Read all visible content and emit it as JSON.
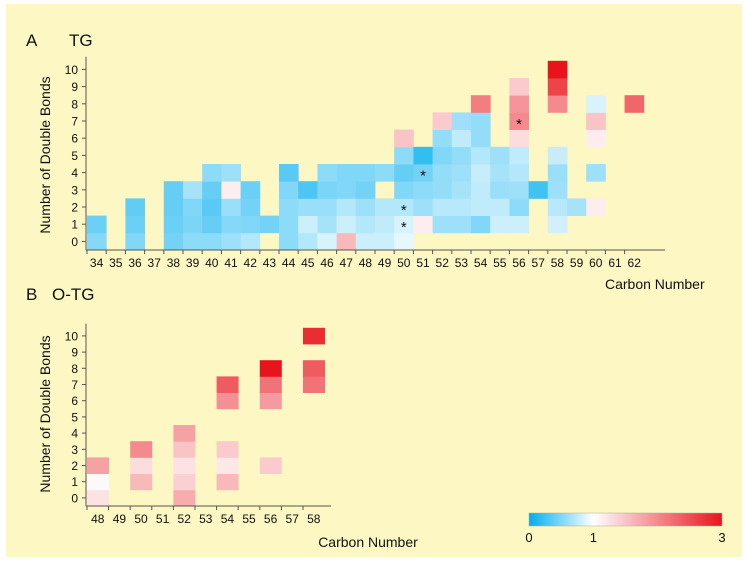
{
  "chart_data": [
    {
      "type": "heatmap",
      "panel_letter": "A",
      "title": "TG",
      "xlabel": "Carbon Number",
      "ylabel": "Number of Double Bonds",
      "x_ticks": [
        "34",
        "35",
        "36",
        "37",
        "38",
        "39",
        "40",
        "41",
        "42",
        "43",
        "44",
        "45",
        "46",
        "47",
        "48",
        "49",
        "50",
        "51",
        "52",
        "53",
        "54",
        "55",
        "56",
        "57",
        "58",
        "59",
        "60",
        "61",
        "62"
      ],
      "y_ticks": [
        "0",
        "1",
        "2",
        "3",
        "4",
        "5",
        "6",
        "7",
        "8",
        "9",
        "10"
      ],
      "color_scale": "fold-change, 0 = cyan (#00aeef), 1 = white, 3 = red (#e8141c)",
      "cells": [
        [
          34,
          0,
          0.52
        ],
        [
          34,
          1,
          0.42
        ],
        [
          36,
          0,
          0.5
        ],
        [
          36,
          1,
          0.42
        ],
        [
          36,
          2,
          0.38
        ],
        [
          38,
          0,
          0.45
        ],
        [
          38,
          1,
          0.42
        ],
        [
          38,
          2,
          0.4
        ],
        [
          38,
          3,
          0.4
        ],
        [
          39,
          0,
          0.55
        ],
        [
          39,
          1,
          0.48
        ],
        [
          39,
          2,
          0.5
        ],
        [
          39,
          3,
          0.65
        ],
        [
          40,
          0,
          0.55
        ],
        [
          40,
          1,
          0.4
        ],
        [
          40,
          2,
          0.35
        ],
        [
          40,
          3,
          0.4
        ],
        [
          40,
          4,
          0.55
        ],
        [
          41,
          0,
          0.62
        ],
        [
          41,
          1,
          0.52
        ],
        [
          41,
          2,
          0.6
        ],
        [
          41,
          3,
          1.15
        ],
        [
          41,
          4,
          0.62
        ],
        [
          42,
          0,
          0.7
        ],
        [
          42,
          1,
          0.5
        ],
        [
          42,
          2,
          0.45
        ],
        [
          42,
          3,
          0.42
        ],
        [
          43,
          1,
          0.45
        ],
        [
          44,
          0,
          0.55
        ],
        [
          44,
          1,
          0.55
        ],
        [
          44,
          2,
          0.55
        ],
        [
          44,
          3,
          0.5
        ],
        [
          44,
          4,
          0.35
        ],
        [
          45,
          0,
          0.7
        ],
        [
          45,
          1,
          0.8
        ],
        [
          45,
          2,
          0.6
        ],
        [
          45,
          3,
          0.3
        ],
        [
          46,
          0,
          0.85
        ],
        [
          46,
          1,
          0.65
        ],
        [
          46,
          2,
          0.6
        ],
        [
          46,
          3,
          0.48
        ],
        [
          46,
          4,
          0.55
        ],
        [
          47,
          0,
          1.6
        ],
        [
          47,
          1,
          0.8
        ],
        [
          47,
          2,
          0.7
        ],
        [
          47,
          3,
          0.5
        ],
        [
          47,
          4,
          0.5
        ],
        [
          48,
          0,
          0.8
        ],
        [
          48,
          1,
          0.7
        ],
        [
          48,
          2,
          0.62
        ],
        [
          48,
          3,
          0.45
        ],
        [
          48,
          4,
          0.5
        ],
        [
          49,
          0,
          0.8
        ],
        [
          49,
          1,
          0.75
        ],
        [
          49,
          2,
          0.7
        ],
        [
          49,
          4,
          0.55
        ],
        [
          50,
          0,
          0.9
        ],
        [
          50,
          1,
          0.85
        ],
        [
          50,
          2,
          0.7
        ],
        [
          50,
          3,
          0.5
        ],
        [
          50,
          4,
          0.4
        ],
        [
          50,
          5,
          0.55
        ],
        [
          50,
          6,
          1.5
        ],
        [
          51,
          1,
          1.15
        ],
        [
          51,
          2,
          0.62
        ],
        [
          51,
          3,
          0.55
        ],
        [
          51,
          4,
          0.45
        ],
        [
          51,
          5,
          0.2
        ],
        [
          52,
          1,
          0.62
        ],
        [
          52,
          2,
          0.72
        ],
        [
          52,
          3,
          0.58
        ],
        [
          52,
          4,
          0.58
        ],
        [
          52,
          5,
          0.5
        ],
        [
          52,
          6,
          0.58
        ],
        [
          52,
          7,
          1.45
        ],
        [
          53,
          1,
          0.62
        ],
        [
          53,
          2,
          0.72
        ],
        [
          53,
          3,
          0.65
        ],
        [
          53,
          4,
          0.62
        ],
        [
          53,
          5,
          0.58
        ],
        [
          53,
          6,
          0.75
        ],
        [
          53,
          7,
          0.62
        ],
        [
          54,
          1,
          0.5
        ],
        [
          54,
          2,
          0.75
        ],
        [
          54,
          3,
          0.75
        ],
        [
          54,
          4,
          0.78
        ],
        [
          54,
          5,
          0.7
        ],
        [
          54,
          6,
          0.58
        ],
        [
          54,
          7,
          0.58
        ],
        [
          54,
          8,
          2.1
        ],
        [
          55,
          1,
          0.8
        ],
        [
          55,
          2,
          0.75
        ],
        [
          55,
          3,
          0.6
        ],
        [
          55,
          4,
          0.65
        ],
        [
          55,
          5,
          0.62
        ],
        [
          56,
          1,
          0.8
        ],
        [
          56,
          2,
          0.55
        ],
        [
          56,
          3,
          0.62
        ],
        [
          56,
          4,
          0.7
        ],
        [
          56,
          5,
          0.75
        ],
        [
          56,
          6,
          1.3
        ],
        [
          56,
          7,
          2.0
        ],
        [
          56,
          8,
          1.9
        ],
        [
          56,
          9,
          1.45
        ],
        [
          57,
          3,
          0.25
        ],
        [
          58,
          1,
          0.82
        ],
        [
          58,
          2,
          0.72
        ],
        [
          58,
          3,
          0.62
        ],
        [
          58,
          4,
          0.6
        ],
        [
          58,
          5,
          0.78
        ],
        [
          58,
          8,
          2.0
        ],
        [
          58,
          9,
          2.6
        ],
        [
          58,
          10,
          3.0
        ],
        [
          59,
          2,
          0.65
        ],
        [
          60,
          2,
          1.15
        ],
        [
          60,
          4,
          0.62
        ],
        [
          60,
          6,
          1.15
        ],
        [
          60,
          7,
          1.5
        ],
        [
          60,
          8,
          0.85
        ],
        [
          62,
          8,
          2.3
        ]
      ],
      "significance_marks": [
        {
          "x": 50,
          "y": 1,
          "text": "*"
        },
        {
          "x": 50,
          "y": 2,
          "text": "*"
        },
        {
          "x": 51,
          "y": 4,
          "text": "*"
        },
        {
          "x": 56,
          "y": 7,
          "text": "*"
        }
      ]
    },
    {
      "type": "heatmap",
      "panel_letter": "B",
      "title": "O-TG",
      "xlabel": "Carbon Number",
      "ylabel": "Number of Double Bonds",
      "x_ticks": [
        "48",
        "49",
        "50",
        "51",
        "52",
        "53",
        "54",
        "55",
        "56",
        "57",
        "58"
      ],
      "y_ticks": [
        "0",
        "1",
        "2",
        "3",
        "4",
        "5",
        "6",
        "7",
        "8",
        "9",
        "10"
      ],
      "color_scale": "fold-change, 0 = cyan (#00aeef), 1 = white, 3 = red (#e8141c)",
      "cells": [
        [
          48,
          0,
          1.25
        ],
        [
          48,
          1,
          1.05
        ],
        [
          48,
          2,
          1.8
        ],
        [
          50,
          1,
          1.6
        ],
        [
          50,
          2,
          1.3
        ],
        [
          50,
          3,
          2.0
        ],
        [
          52,
          0,
          1.7
        ],
        [
          52,
          1,
          1.4
        ],
        [
          52,
          2,
          1.25
        ],
        [
          52,
          3,
          1.5
        ],
        [
          52,
          4,
          1.8
        ],
        [
          54,
          1,
          1.6
        ],
        [
          54,
          2,
          1.2
        ],
        [
          54,
          3,
          1.45
        ],
        [
          54,
          6,
          1.95
        ],
        [
          54,
          7,
          2.4
        ],
        [
          56,
          2,
          1.45
        ],
        [
          56,
          6,
          1.85
        ],
        [
          56,
          7,
          2.2
        ],
        [
          56,
          8,
          3.0
        ],
        [
          58,
          7,
          2.2
        ],
        [
          58,
          8,
          2.4
        ],
        [
          58,
          10,
          2.8
        ]
      ]
    }
  ],
  "colorbar": {
    "tick_labels": [
      "0",
      "1",
      "3"
    ],
    "stops": [
      {
        "value": 0,
        "color": "#00aeef"
      },
      {
        "value": 1,
        "color": "#ffffff"
      },
      {
        "value": 3,
        "color": "#e8141c"
      }
    ]
  },
  "colors": {
    "background": "#fcf7c3",
    "axis": "#555555",
    "text": "#111111"
  }
}
